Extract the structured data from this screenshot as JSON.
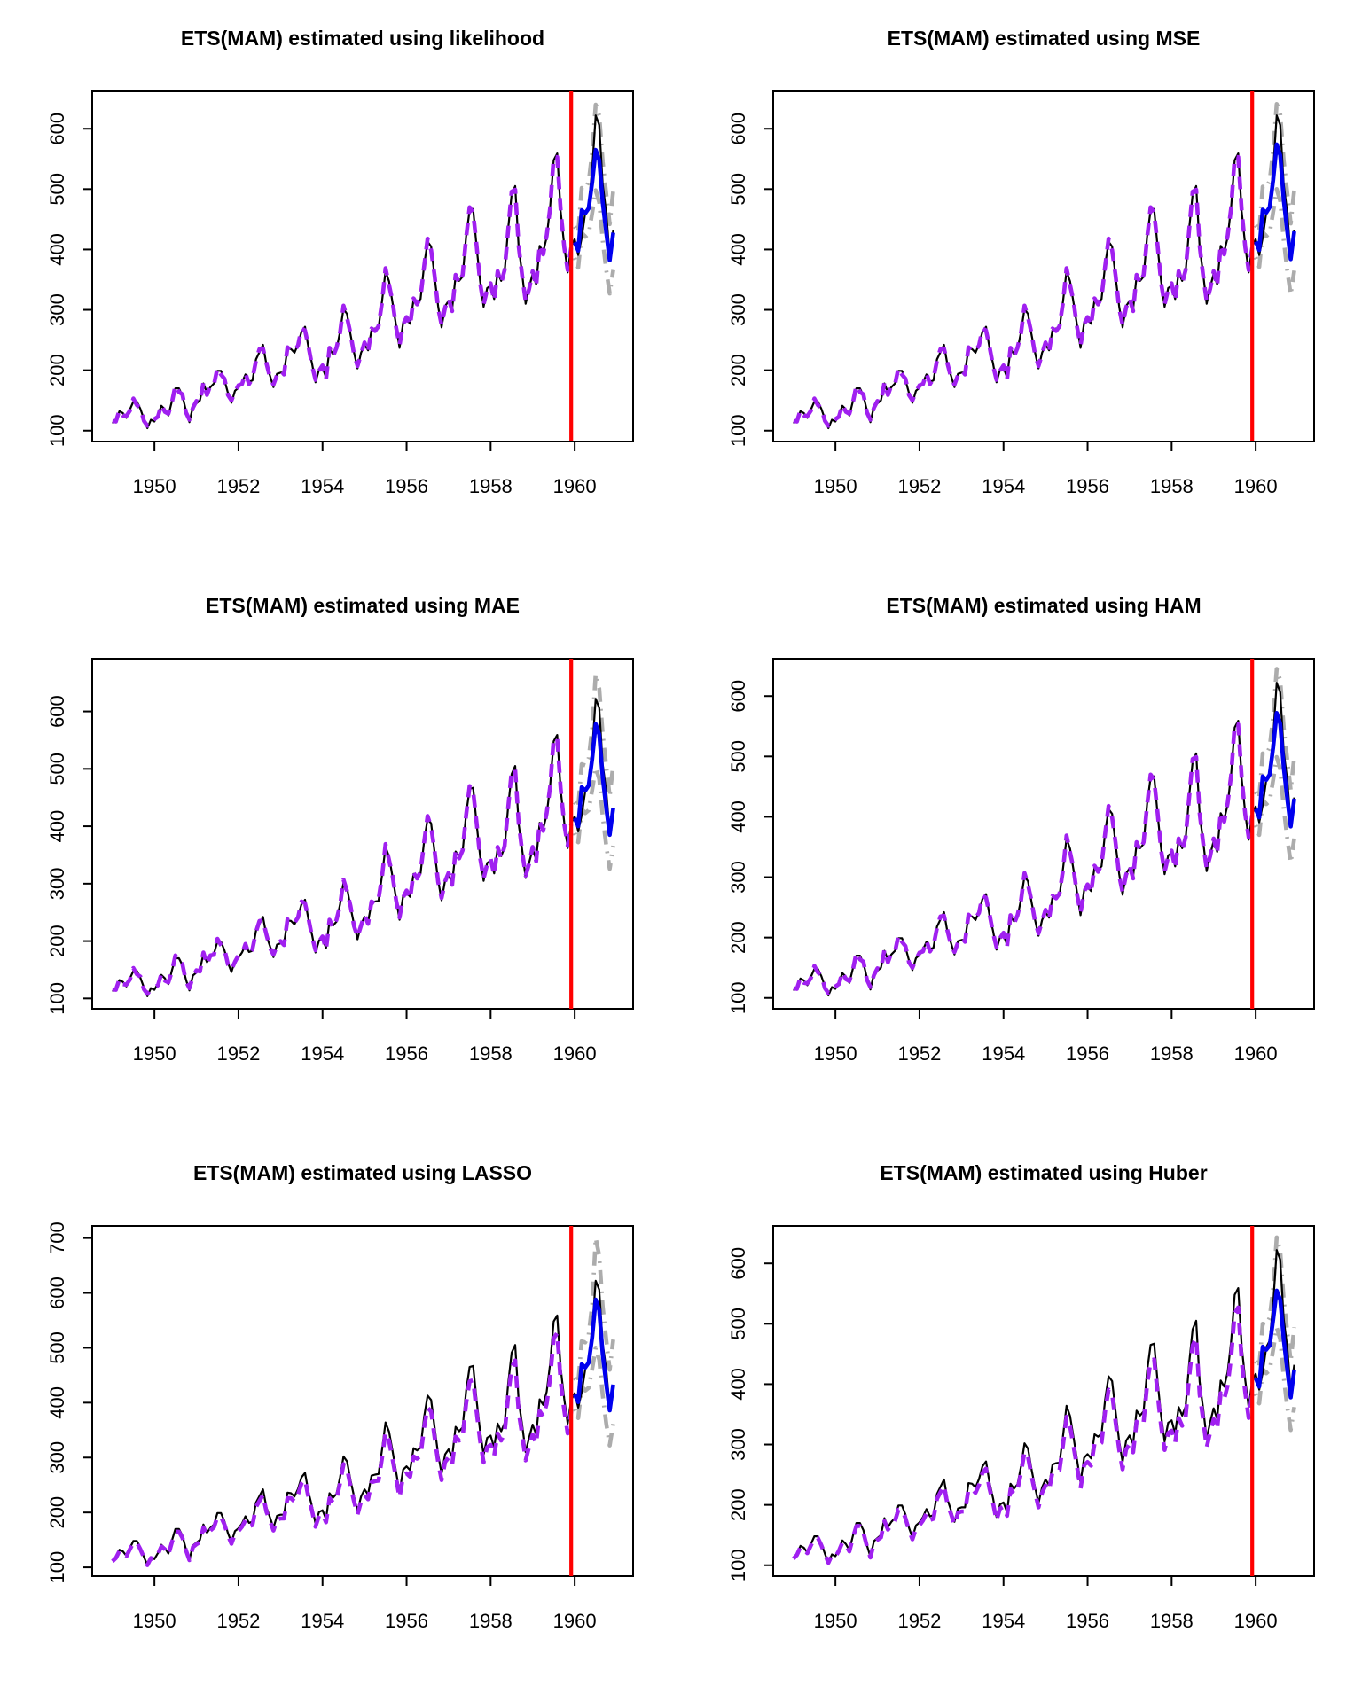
{
  "page": {
    "background": "#ffffff",
    "layout": "2x3 grid of base-R style time series panels"
  },
  "chart_data": {
    "type": "line",
    "layout": "2 columns x 3 rows",
    "shared": {
      "x_start": 1949,
      "frequency": 12,
      "xlim": [
        1948.52,
        1961.39
      ],
      "xticks": [
        1950,
        1952,
        1954,
        1956,
        1958,
        1960
      ],
      "holdout_divider_x": 1959.917,
      "forecast_start": 1960,
      "colors": {
        "actual": "#000000",
        "fitted": "#A020F0",
        "forecast": "#0000EE",
        "interval": "#ACACAC",
        "holdout_divider": "#FF0000",
        "axis": "#000000"
      },
      "line_styles": {
        "actual": "solid thin",
        "fitted": "dashed thick",
        "forecast": "solid thick",
        "interval": "dash-dot thick",
        "holdout_divider": "solid vertical"
      },
      "actual": [
        112,
        118,
        132,
        129,
        121,
        135,
        148,
        148,
        136,
        119,
        104,
        118,
        115,
        126,
        141,
        135,
        125,
        149,
        170,
        170,
        158,
        133,
        114,
        140,
        145,
        150,
        178,
        163,
        172,
        178,
        199,
        199,
        184,
        162,
        146,
        166,
        171,
        180,
        193,
        181,
        183,
        218,
        230,
        242,
        209,
        191,
        172,
        194,
        196,
        196,
        236,
        235,
        229,
        243,
        264,
        272,
        237,
        211,
        180,
        201,
        204,
        188,
        235,
        227,
        234,
        264,
        302,
        293,
        259,
        229,
        203,
        229,
        242,
        233,
        267,
        269,
        270,
        315,
        364,
        347,
        312,
        274,
        237,
        278,
        284,
        277,
        317,
        313,
        318,
        374,
        413,
        405,
        355,
        306,
        271,
        306,
        315,
        301,
        356,
        348,
        355,
        422,
        465,
        467,
        404,
        347,
        305,
        336,
        340,
        318,
        362,
        348,
        363,
        435,
        491,
        505,
        404,
        359,
        310,
        337,
        360,
        342,
        406,
        396,
        420,
        472,
        548,
        559,
        463,
        407,
        362,
        405,
        417,
        391,
        419,
        461,
        472,
        535,
        622,
        606,
        508,
        461,
        390,
        432
      ],
      "fitted_tight": [
        116,
        115,
        134,
        125,
        124,
        133,
        153,
        142,
        138,
        116,
        108,
        116,
        119,
        123,
        143,
        131,
        128,
        147,
        175,
        164,
        160,
        130,
        118,
        138,
        149,
        147,
        180,
        159,
        175,
        176,
        204,
        193,
        186,
        159,
        150,
        164,
        175,
        177,
        195,
        177,
        186,
        216,
        235,
        236,
        211,
        188,
        176,
        192,
        200,
        193,
        238,
        231,
        232,
        241,
        269,
        266,
        239,
        208,
        184,
        199,
        208,
        185,
        237,
        223,
        237,
        262,
        307,
        287,
        261,
        226,
        207,
        227,
        246,
        230,
        269,
        265,
        273,
        313,
        369,
        341,
        314,
        271,
        241,
        276,
        288,
        274,
        319,
        309,
        321,
        372,
        418,
        399,
        357,
        303,
        275,
        304,
        319,
        298,
        358,
        344,
        358,
        420,
        470,
        461,
        406,
        344,
        309,
        334,
        344,
        315,
        364,
        344,
        366,
        433,
        496,
        499,
        406,
        356,
        314,
        335,
        364,
        339,
        408,
        392,
        423,
        470,
        553,
        553,
        465,
        404,
        366,
        403
      ],
      "fitted_loose": [
        111,
        117,
        130,
        127,
        120,
        133,
        145,
        145,
        133,
        118,
        104,
        117,
        114,
        124,
        138,
        133,
        123,
        146,
        165,
        165,
        154,
        131,
        113,
        137,
        142,
        146,
        173,
        159,
        167,
        173,
        192,
        192,
        178,
        158,
        143,
        161,
        166,
        174,
        186,
        175,
        177,
        210,
        221,
        232,
        201,
        185,
        167,
        187,
        189,
        189,
        226,
        226,
        220,
        233,
        253,
        260,
        227,
        203,
        174,
        194,
        197,
        182,
        226,
        218,
        225,
        253,
        288,
        279,
        248,
        220,
        196,
        220,
        232,
        224,
        255,
        257,
        258,
        300,
        346,
        330,
        297,
        262,
        227,
        266,
        271,
        265,
        302,
        298,
        303,
        355,
        391,
        384,
        337,
        292,
        259,
        292,
        300,
        287,
        338,
        331,
        337,
        399,
        439,
        441,
        383,
        330,
        291,
        319,
        323,
        303,
        344,
        331,
        345,
        412,
        464,
        477,
        383,
        341,
        295,
        320,
        342,
        325,
        385,
        375,
        398,
        446,
        517,
        527,
        438,
        386,
        344,
        384
      ]
    },
    "panels": [
      {
        "title": "ETS(MAM) estimated using likelihood",
        "ylim": [
          82,
          662
        ],
        "yticks": [
          100,
          200,
          300,
          400,
          500,
          600
        ],
        "fitted": "tight",
        "forecast": [
          412,
          398,
          465,
          460,
          468,
          512,
          565,
          548,
          478,
          428,
          382,
          428
        ],
        "upper": [
          438,
          428,
          502,
          500,
          512,
          562,
          640,
          622,
          545,
          492,
          442,
          498
        ],
        "lower": [
          386,
          370,
          428,
          421,
          426,
          461,
          498,
          478,
          415,
          366,
          327,
          366
        ]
      },
      {
        "title": "ETS(MAM) estimated using MSE",
        "ylim": [
          82,
          662
        ],
        "yticks": [
          100,
          200,
          300,
          400,
          500,
          600
        ],
        "fitted": "tight",
        "forecast": [
          413,
          399,
          466,
          461,
          470,
          516,
          574,
          556,
          482,
          430,
          384,
          430
        ],
        "upper": [
          440,
          430,
          504,
          502,
          514,
          566,
          641,
          624,
          547,
          494,
          443,
          499
        ],
        "lower": [
          387,
          371,
          429,
          422,
          427,
          463,
          500,
          480,
          416,
          365,
          325,
          365
        ]
      },
      {
        "title": "ETS(MAM) estimated using MAE",
        "ylim": [
          82,
          692
        ],
        "yticks": [
          100,
          200,
          300,
          400,
          500,
          600
        ],
        "fitted": "tight",
        "forecast": [
          414,
          400,
          468,
          462,
          471,
          518,
          578,
          560,
          485,
          432,
          385,
          432
        ],
        "upper": [
          442,
          433,
          508,
          506,
          518,
          572,
          665,
          640,
          560,
          505,
          452,
          508
        ],
        "lower": [
          388,
          372,
          430,
          423,
          428,
          464,
          502,
          482,
          418,
          366,
          326,
          366
        ]
      },
      {
        "title": "ETS(MAM) estimated using HAM",
        "ylim": [
          82,
          662
        ],
        "yticks": [
          100,
          200,
          300,
          400,
          500,
          600
        ],
        "fitted": "tight",
        "forecast": [
          413,
          399,
          467,
          461,
          470,
          516,
          572,
          554,
          482,
          430,
          384,
          430
        ],
        "upper": [
          441,
          431,
          505,
          503,
          515,
          568,
          645,
          626,
          548,
          495,
          444,
          500
        ],
        "lower": [
          386,
          370,
          428,
          421,
          426,
          462,
          499,
          479,
          415,
          364,
          324,
          364
        ]
      },
      {
        "title": "ETS(MAM) estimated using LASSO",
        "ylim": [
          84,
          722
        ],
        "yticks": [
          100,
          200,
          300,
          400,
          500,
          600,
          700
        ],
        "fitted": "loose",
        "forecast": [
          415,
          401,
          470,
          464,
          473,
          520,
          588,
          568,
          488,
          434,
          386,
          433
        ],
        "upper": [
          445,
          436,
          512,
          510,
          524,
          580,
          700,
          668,
          575,
          515,
          460,
          515
        ],
        "lower": [
          388,
          372,
          430,
          422,
          427,
          462,
          500,
          478,
          414,
          362,
          322,
          362
        ]
      },
      {
        "title": "ETS(MAM) estimated using Huber",
        "ylim": [
          82,
          662
        ],
        "yticks": [
          100,
          200,
          300,
          400,
          500,
          600
        ],
        "fitted": "loose",
        "forecast": [
          410,
          396,
          462,
          457,
          464,
          508,
          555,
          540,
          474,
          424,
          378,
          424
        ],
        "upper": [
          438,
          428,
          500,
          498,
          510,
          560,
          643,
          620,
          540,
          488,
          438,
          494
        ],
        "lower": [
          384,
          368,
          425,
          418,
          423,
          458,
          494,
          474,
          412,
          362,
          324,
          362
        ]
      }
    ]
  }
}
